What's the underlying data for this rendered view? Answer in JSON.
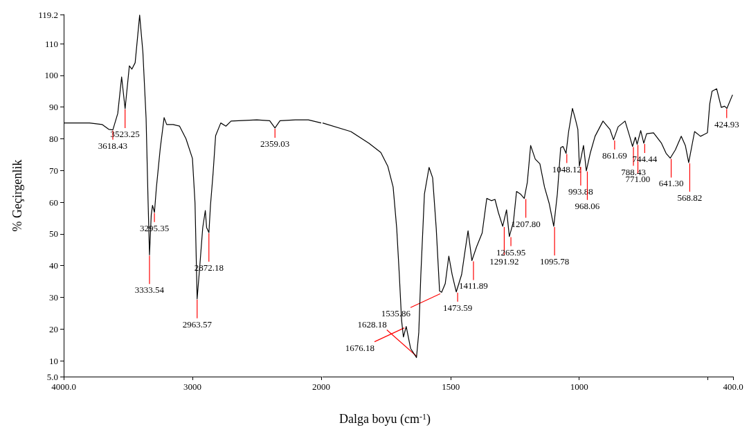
{
  "chart_data": [
    {
      "type": "line",
      "ylabel": "% Geçirgenlik",
      "xlim": [
        4000,
        2000
      ],
      "xticks": [
        {
          "value": 4000,
          "label": "4000.0"
        },
        3000,
        2000
      ],
      "ylim": [
        5,
        119.2
      ],
      "yticks": [
        {
          "value": 5,
          "label": "5.0"
        },
        10,
        20,
        30,
        40,
        50,
        60,
        70,
        80,
        90,
        100,
        110,
        {
          "value": 119.2,
          "label": "119.2"
        }
      ],
      "tick_labels": "xy",
      "series": [
        {
          "color": "#000000",
          "x": [
            4000,
            3800,
            3700,
            3650,
            3618,
            3580,
            3550,
            3523,
            3490,
            3470,
            3445,
            3410,
            3385,
            3360,
            3345,
            3333.5,
            3320,
            3310,
            3295,
            3280,
            3250,
            3220,
            3200,
            3150,
            3100,
            3050,
            3000,
            2980,
            2963.6,
            2945,
            2920,
            2900,
            2890,
            2872,
            2860,
            2840,
            2820,
            2780,
            2740,
            2700,
            2500,
            2400,
            2359,
            2320,
            2200,
            2100,
            2000
          ],
          "values": [
            85,
            85,
            84.5,
            83,
            82.8,
            88,
            99.5,
            89.5,
            103,
            102,
            104,
            119,
            107.4,
            86.5,
            61,
            43.4,
            56,
            59,
            56.8,
            64.6,
            77,
            86.7,
            84.5,
            84.5,
            84,
            80,
            73.8,
            59.8,
            29.5,
            38.8,
            52,
            57.4,
            52,
            50.4,
            59,
            69,
            81,
            85,
            84,
            85.6,
            86,
            85.7,
            83.4,
            85.7,
            86,
            86,
            85
          ]
        }
      ],
      "annotations": [
        {
          "text": "3618.43",
          "x": 3618.43,
          "y": 82.8
        },
        {
          "text": "3523.25",
          "x": 3523.25,
          "y": 89.5
        },
        {
          "text": "3333.54",
          "x": 3333.54,
          "y": 43.4
        },
        {
          "text": "3295.35",
          "x": 3295.35,
          "y": 56.8
        },
        {
          "text": "2963.57",
          "x": 2963.57,
          "y": 29.5
        },
        {
          "text": "2872.18",
          "x": 2872.18,
          "y": 50.4
        },
        {
          "text": "2359.03",
          "x": 2359.03,
          "y": 83.4
        }
      ]
    },
    {
      "type": "line",
      "xlabel": "Dalga boyu (cm$^{-1}$)",
      "xlim": [
        2000,
        400
      ],
      "xticks": [
        1500,
        1000,
        {
          "value": 500,
          "label": null
        },
        {
          "value": 400,
          "label": "400.0"
        }
      ],
      "ylim": [
        5,
        119.2
      ],
      "tick_labels": "x",
      "series": [
        {
          "color": "#000000",
          "x": [
            2000,
            1890,
            1819,
            1773,
            1746,
            1725,
            1711,
            1701,
            1692,
            1685,
            1674,
            1657,
            1634,
            1625,
            1617,
            1603,
            1585,
            1571,
            1557,
            1544,
            1536,
            1522,
            1508,
            1495,
            1479,
            1458,
            1445,
            1433,
            1418,
            1400,
            1378,
            1360,
            1342,
            1328,
            1315,
            1298,
            1283,
            1272,
            1256,
            1244,
            1229,
            1214,
            1202,
            1189,
            1171,
            1153,
            1135,
            1117,
            1099,
            1085,
            1072,
            1063,
            1051,
            1041,
            1026,
            1014,
            1005,
            999,
            983,
            972,
            956,
            938,
            907,
            880,
            866,
            848,
            821,
            803,
            792,
            781,
            774,
            760,
            748,
            737,
            710,
            679,
            661,
            645,
            625,
            602,
            586,
            573,
            550,
            527,
            500,
            491,
            482,
            464,
            446,
            433,
            424,
            402
          ],
          "values": [
            85,
            82.3,
            78.6,
            75.7,
            71.4,
            64.8,
            51.7,
            37.2,
            22.7,
            17.5,
            20.8,
            13.9,
            11,
            19,
            37.2,
            62.6,
            71,
            67.7,
            51.7,
            32,
            31.6,
            34.3,
            43,
            37.2,
            31.7,
            37.2,
            44.5,
            51,
            41.6,
            45.9,
            50.3,
            61.2,
            60.5,
            60.9,
            56.8,
            52.4,
            57.6,
            49.2,
            53.9,
            63.4,
            62.6,
            61.2,
            66.3,
            77.9,
            73.6,
            72.1,
            64.8,
            59.7,
            52.4,
            62.6,
            77.2,
            77.6,
            75.4,
            82.3,
            89.6,
            86,
            83,
            71.4,
            77.9,
            69.9,
            75.7,
            80.8,
            85.6,
            83,
            79.7,
            83.8,
            85.6,
            80.8,
            77.6,
            80.5,
            78.3,
            82.6,
            78.6,
            81.6,
            81.9,
            78.6,
            75.4,
            73.9,
            76.5,
            80.8,
            77.9,
            72.5,
            82.3,
            80.8,
            81.9,
            91,
            95,
            95.8,
            89.9,
            90.3,
            89.6,
            93.9
          ]
        }
      ],
      "annotations": [
        {
          "text": "1676.18",
          "x": 1676.18,
          "y": 20.8
        },
        {
          "text": "1628.18",
          "x": 1628.18,
          "y": 11
        },
        {
          "text": "1535.86",
          "x": 1535.86,
          "y": 31.6
        },
        {
          "text": "1473.59",
          "x": 1473.59,
          "y": 31.7
        },
        {
          "text": "1411.89",
          "x": 1411.89,
          "y": 41.6
        },
        {
          "text": "1291.92",
          "x": 1291.92,
          "y": 52.4
        },
        {
          "text": "1265.95",
          "x": 1265.95,
          "y": 49.2
        },
        {
          "text": "1207.80",
          "x": 1207.8,
          "y": 61.2
        },
        {
          "text": "1095.78",
          "x": 1095.78,
          "y": 52.4
        },
        {
          "text": "1048.12",
          "x": 1048.12,
          "y": 75.4
        },
        {
          "text": "993.88",
          "x": 993.88,
          "y": 71.4
        },
        {
          "text": "968.06",
          "x": 968.06,
          "y": 69.9
        },
        {
          "text": "861.69",
          "x": 861.69,
          "y": 79.7
        },
        {
          "text": "788.43",
          "x": 788.43,
          "y": 77.6
        },
        {
          "text": "771.00",
          "x": 771,
          "y": 78.3
        },
        {
          "text": "744.44",
          "x": 744.44,
          "y": 78.6
        },
        {
          "text": "641.30",
          "x": 641.3,
          "y": 73.9
        },
        {
          "text": "568.82",
          "x": 568.82,
          "y": 72.5
        },
        {
          "text": "424.93",
          "x": 424.93,
          "y": 89.6
        }
      ]
    }
  ]
}
